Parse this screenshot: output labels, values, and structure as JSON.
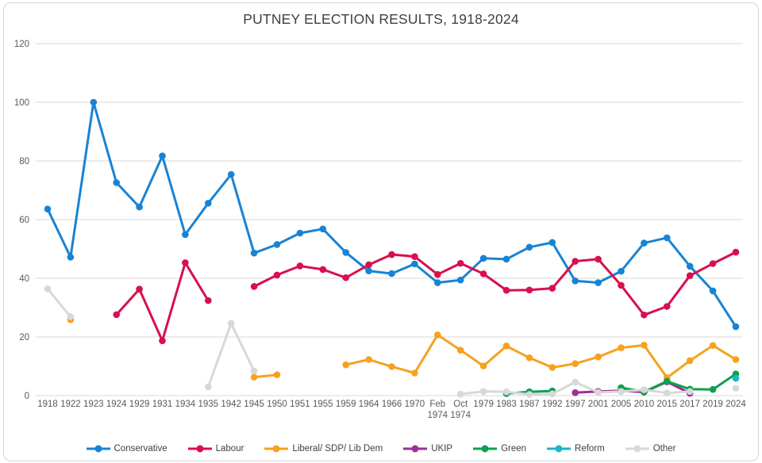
{
  "chart_data": {
    "type": "line",
    "title": "PUTNEY ELECTION RESULTS, 1918-2024",
    "xlabel": "",
    "ylabel": "",
    "ylim": [
      0,
      120
    ],
    "yticks": [
      0,
      20,
      40,
      60,
      80,
      100,
      120
    ],
    "grid": true,
    "legend_position": "bottom",
    "categories": [
      "1918",
      "1922",
      "1923",
      "1924",
      "1929",
      "1931",
      "1934",
      "1935",
      "1942",
      "1945",
      "1950",
      "1951",
      "1955",
      "1959",
      "1964",
      "1966",
      "1970",
      "Feb 1974",
      "Oct 1974",
      "1979",
      "1983",
      "1987",
      "1992",
      "1997",
      "2001",
      "2005",
      "2010",
      "2015",
      "2017",
      "2019",
      "2024"
    ],
    "series": [
      {
        "name": "Conservative",
        "color": "#1883d5",
        "values": [
          63.6,
          47.2,
          100,
          72.6,
          64.3,
          81.7,
          54.9,
          65.6,
          75.4,
          48.6,
          51.5,
          55.4,
          56.8,
          48.8,
          42.5,
          41.6,
          44.9,
          38.5,
          39.4,
          46.8,
          46.5,
          50.6,
          52.2,
          39.1,
          38.5,
          42.4,
          52.0,
          53.8,
          44.1,
          35.7,
          23.5
        ]
      },
      {
        "name": "Labour",
        "color": "#d8104d",
        "values": [
          null,
          null,
          null,
          27.6,
          36.3,
          18.7,
          45.3,
          32.4,
          null,
          37.2,
          41.1,
          44.2,
          43.0,
          40.2,
          44.6,
          48.1,
          47.4,
          41.3,
          45.1,
          41.5,
          35.9,
          36.0,
          36.6,
          45.8,
          46.5,
          37.6,
          27.5,
          30.4,
          40.9,
          45.0,
          48.9
        ]
      },
      {
        "name": "Liberal/ SDP/ Lib Dem",
        "color": "#f6a21d",
        "values": [
          null,
          25.9,
          null,
          null,
          null,
          null,
          null,
          null,
          null,
          6.3,
          7.1,
          null,
          null,
          10.5,
          12.3,
          9.9,
          7.7,
          20.7,
          15.5,
          10.1,
          16.9,
          12.9,
          9.6,
          10.9,
          13.2,
          16.3,
          17.2,
          6.1,
          11.9,
          17.1,
          12.3
        ]
      },
      {
        "name": "UKIP",
        "color": "#9b2f96",
        "values": [
          null,
          null,
          null,
          null,
          null,
          null,
          null,
          null,
          null,
          null,
          null,
          null,
          null,
          null,
          null,
          null,
          null,
          null,
          null,
          null,
          null,
          null,
          null,
          1.0,
          1.4,
          1.7,
          1.2,
          4.7,
          0.8,
          null,
          null
        ]
      },
      {
        "name": "Green",
        "color": "#0fa04f",
        "values": [
          null,
          null,
          null,
          null,
          null,
          null,
          null,
          null,
          null,
          null,
          null,
          null,
          null,
          null,
          null,
          null,
          null,
          null,
          null,
          null,
          0.7,
          1.3,
          1.6,
          null,
          null,
          2.7,
          1.3,
          4.9,
          2.2,
          2.1,
          7.4
        ]
      },
      {
        "name": "Reform",
        "color": "#1cb4c8",
        "values": [
          null,
          null,
          null,
          null,
          null,
          null,
          null,
          null,
          null,
          null,
          null,
          null,
          null,
          null,
          null,
          null,
          null,
          null,
          null,
          null,
          null,
          null,
          null,
          null,
          null,
          null,
          null,
          null,
          null,
          null,
          5.9
        ]
      },
      {
        "name": "Other",
        "color": "#d8d8d8",
        "values": [
          36.4,
          26.9,
          null,
          null,
          null,
          null,
          null,
          3.0,
          24.6,
          8.4,
          null,
          null,
          null,
          null,
          null,
          null,
          null,
          null,
          0.5,
          1.4,
          1.3,
          0.4,
          0.6,
          4.6,
          1.1,
          1.4,
          2.0,
          0.9,
          1.4,
          null,
          2.5
        ]
      }
    ]
  }
}
